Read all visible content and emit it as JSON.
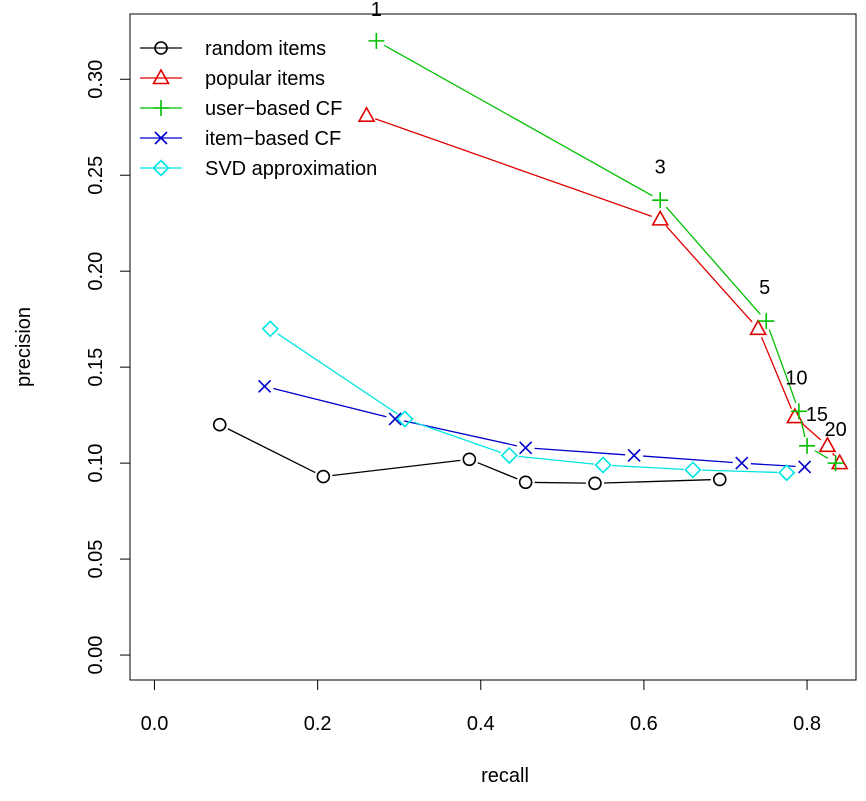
{
  "chart_data": {
    "type": "line",
    "title": "",
    "xlabel": "recall",
    "ylabel": "precision",
    "xlim": [
      -0.03,
      0.86
    ],
    "ylim": [
      -0.013,
      0.334
    ],
    "x_ticks": [
      0.0,
      0.2,
      0.4,
      0.6,
      0.8
    ],
    "x_tick_labels": [
      "0.0",
      "0.2",
      "0.4",
      "0.6",
      "0.8"
    ],
    "y_ticks": [
      0.0,
      0.05,
      0.1,
      0.15,
      0.2,
      0.25,
      0.3
    ],
    "y_tick_labels": [
      "0.00",
      "0.05",
      "0.10",
      "0.15",
      "0.20",
      "0.25",
      "0.30"
    ],
    "legend_position": "top-left",
    "grid": false,
    "series": [
      {
        "name": "random items",
        "color": "#000000",
        "marker": "circle",
        "x": [
          0.08,
          0.207,
          0.386,
          0.455,
          0.54,
          0.693
        ],
        "y": [
          0.12,
          0.093,
          0.102,
          0.09,
          0.0895,
          0.0915
        ]
      },
      {
        "name": "popular items",
        "color": "#DF0000",
        "marker": "triangle",
        "x": [
          0.26,
          0.62,
          0.74,
          0.785,
          0.825,
          0.84
        ],
        "y": [
          0.281,
          0.227,
          0.17,
          0.124,
          0.109,
          0.1
        ]
      },
      {
        "name": "user−based CF",
        "color": "#00C000",
        "marker": "plus",
        "x": [
          0.272,
          0.62,
          0.75,
          0.79,
          0.8,
          0.835
        ],
        "y": [
          0.32,
          0.237,
          0.174,
          0.127,
          0.109,
          0.1
        ]
      },
      {
        "name": "item−based CF",
        "color": "#0000CD",
        "marker": "cross",
        "x": [
          0.135,
          0.295,
          0.455,
          0.588,
          0.72,
          0.797
        ],
        "y": [
          0.14,
          0.123,
          0.108,
          0.104,
          0.1,
          0.098
        ]
      },
      {
        "name": "SVD approximation",
        "color": "#00E5E5",
        "marker": "diamond",
        "x": [
          0.142,
          0.307,
          0.435,
          0.55,
          0.66,
          0.775
        ],
        "y": [
          0.17,
          0.123,
          0.104,
          0.099,
          0.0965,
          0.095
        ]
      }
    ],
    "annotations": [
      {
        "text": "1",
        "x": 0.272,
        "y": 0.333
      },
      {
        "text": "3",
        "x": 0.62,
        "y": 0.251
      },
      {
        "text": "5",
        "x": 0.748,
        "y": 0.188
      },
      {
        "text": "10",
        "x": 0.787,
        "y": 0.141
      },
      {
        "text": "15",
        "x": 0.812,
        "y": 0.122
      },
      {
        "text": "20",
        "x": 0.835,
        "y": 0.114
      }
    ]
  }
}
